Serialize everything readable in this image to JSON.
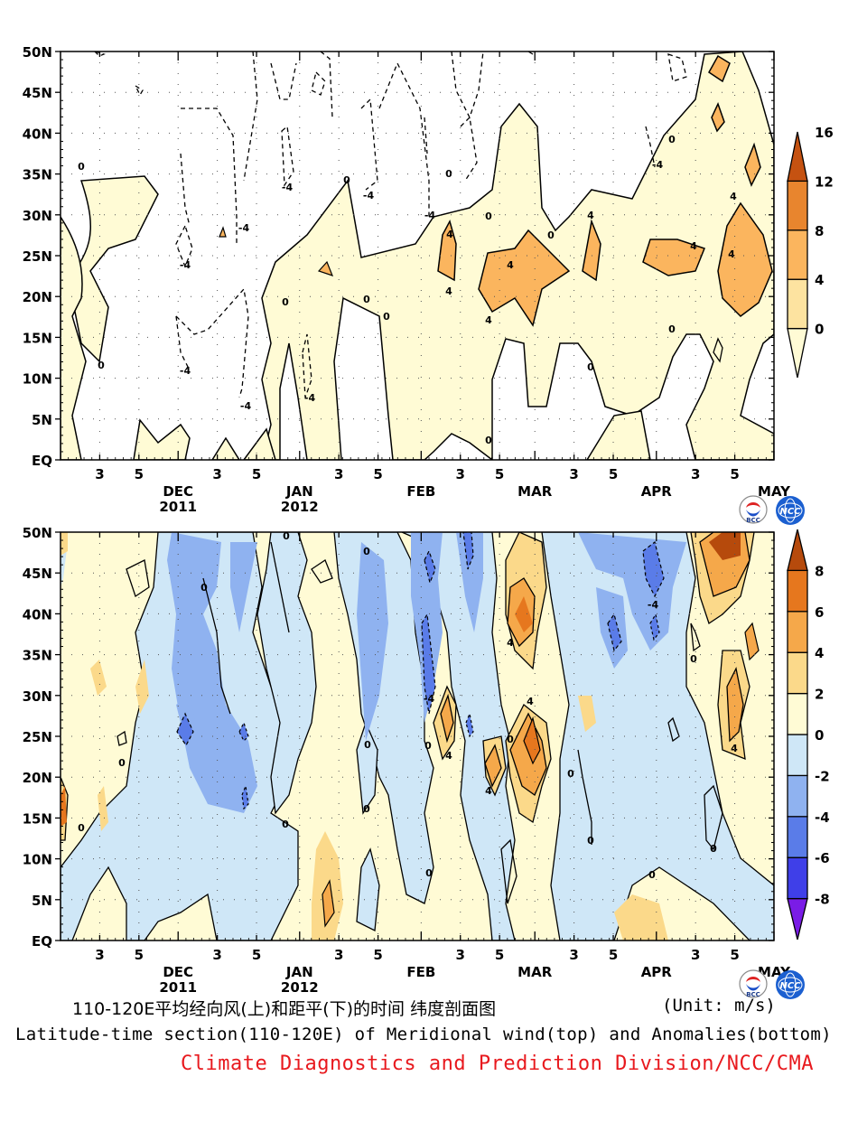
{
  "chart_data": [
    {
      "type": "heatmap",
      "panel": "top",
      "xlim": [
        "2011-11-01",
        "2012-05-01"
      ],
      "ylim": [
        0,
        50
      ],
      "y_ticks": [
        "EQ",
        "5N",
        "10N",
        "15N",
        "20N",
        "25N",
        "30N",
        "35N",
        "40N",
        "45N",
        "50N"
      ],
      "x_ticks": [
        "3",
        "5",
        "DEC",
        "3",
        "5",
        "JAN",
        "3",
        "5",
        "FEB",
        "3",
        "5",
        "MAR",
        "3",
        "5",
        "APR",
        "3",
        "5",
        "MAY"
      ],
      "x_year_labels": [
        "2011",
        "2012"
      ],
      "colorbar": {
        "levels": [
          0,
          4,
          8,
          12,
          16
        ],
        "labels": [
          "0",
          "4",
          "8",
          "12",
          "16"
        ],
        "colors": [
          "#fffbd5",
          "#fde3a0",
          "#fbb55e",
          "#e8852e",
          "#c55211"
        ]
      },
      "contour_labels": [
        "0",
        "0",
        "0",
        "0",
        "0",
        "0",
        "0",
        "0",
        "0",
        "0",
        "0",
        "0",
        "-4",
        "-4",
        "-4",
        "-4",
        "-4",
        "-4",
        "-4",
        "-4",
        "-4",
        "4",
        "4",
        "4",
        "4",
        "4",
        "4",
        "4",
        "4",
        "4"
      ],
      "features": [
        {
          "kind": "positive",
          "x": [
            "2012-02-01",
            "2012-02-28"
          ],
          "y": [
            15,
            40
          ],
          "peak": 8
        },
        {
          "kind": "positive",
          "x": [
            "2012-04-01",
            "2012-05-01"
          ],
          "y": [
            18,
            50
          ],
          "peak": 8
        },
        {
          "kind": "negative",
          "x": [
            "2011-12-01",
            "2012-01-15"
          ],
          "y": [
            5,
            50
          ],
          "peak": -4
        }
      ]
    },
    {
      "type": "heatmap",
      "panel": "bottom",
      "xlim": [
        "2011-11-01",
        "2012-05-01"
      ],
      "ylim": [
        0,
        50
      ],
      "y_ticks": [
        "EQ",
        "5N",
        "10N",
        "15N",
        "20N",
        "25N",
        "30N",
        "35N",
        "40N",
        "45N",
        "50N"
      ],
      "x_ticks": [
        "3",
        "5",
        "DEC",
        "3",
        "5",
        "JAN",
        "3",
        "5",
        "FEB",
        "3",
        "5",
        "MAR",
        "3",
        "5",
        "APR",
        "3",
        "5",
        "MAY"
      ],
      "x_year_labels": [
        "2011",
        "2012"
      ],
      "colorbar": {
        "levels": [
          -8,
          -6,
          -4,
          -2,
          0,
          2,
          4,
          6,
          8
        ],
        "labels": [
          "-8",
          "-6",
          "-4",
          "-2",
          "0",
          "2",
          "4",
          "6",
          "8"
        ],
        "colors": [
          "#7a1ce6",
          "#3f3fe8",
          "#5a7ce8",
          "#8fb2f0",
          "#cfe7f7",
          "#fffbd5",
          "#fbd98a",
          "#f5a84a",
          "#e6771e",
          "#b64a0c"
        ]
      },
      "contour_labels": [
        "0",
        "0",
        "0",
        "0",
        "0",
        "0",
        "0",
        "0",
        "0",
        "0",
        "0",
        "0",
        "0",
        "0",
        "0",
        "-4",
        "-4",
        "4",
        "4",
        "4",
        "4",
        "4",
        "4"
      ],
      "features": [
        {
          "kind": "positive",
          "x": [
            "2012-02-15",
            "2012-03-10"
          ],
          "y": [
            15,
            45
          ],
          "peak": 6
        },
        {
          "kind": "positive",
          "x": [
            "2012-04-10",
            "2012-05-01"
          ],
          "y": [
            20,
            50
          ],
          "peak": 8
        },
        {
          "kind": "negative",
          "x": [
            "2011-11-25",
            "2012-01-10"
          ],
          "y": [
            10,
            50
          ],
          "peak": -4
        }
      ]
    }
  ],
  "captions": {
    "title_cn": "110-120E平均经向风(上)和距平(下)的时间 纬度剖面图",
    "unit": "(Unit: m/s)",
    "title_en": "Latitude-time section(110-120E) of Meridional wind(top) and Anomalies(bottom)",
    "credit": "Climate Diagnostics and Prediction Division/NCC/CMA"
  },
  "logos": {
    "left": "BCC",
    "right": "NCC"
  }
}
